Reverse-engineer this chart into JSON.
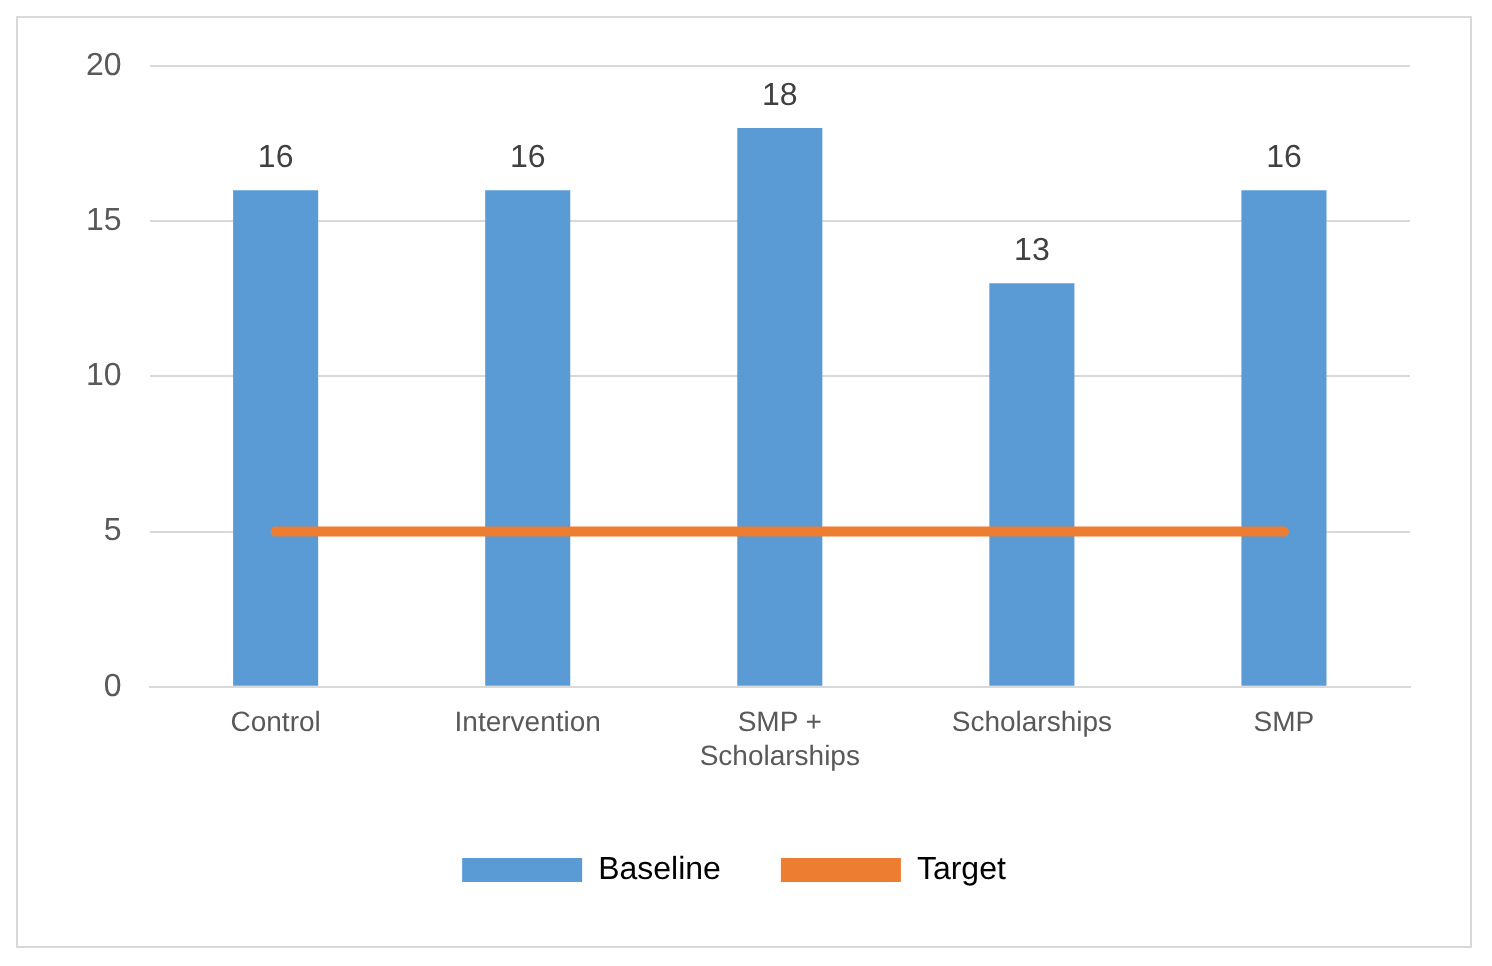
{
  "chart_data": {
    "type": "bar",
    "categories": [
      "Control",
      "Intervention",
      "SMP + Scholarships",
      "Scholarships",
      "SMP"
    ],
    "series": [
      {
        "name": "Baseline",
        "color": "#5b9bd5",
        "values": [
          16,
          16,
          18,
          13,
          16
        ],
        "value_labels": [
          "16",
          "16",
          "18",
          "13",
          "16"
        ]
      },
      {
        "name": "Target",
        "type": "line",
        "color": "#ed7d31",
        "values": [
          5,
          5,
          5,
          5,
          5
        ]
      }
    ],
    "ylim": [
      0,
      20
    ],
    "yticks": [
      0,
      5,
      10,
      15,
      20
    ],
    "grid": "y",
    "legend": "bottom",
    "marker": "none"
  }
}
